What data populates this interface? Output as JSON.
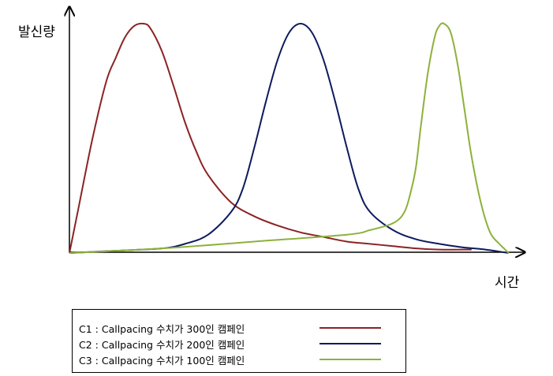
{
  "chart_data": {
    "type": "line",
    "title": "",
    "ylabel": "발신량",
    "xlabel": "시간",
    "grid": false,
    "legend_placement": "bottom",
    "series": [
      {
        "name": "C1 : Callpacing 수치가 300인 캠페인",
        "color": "#8b2324",
        "points": [
          [
            0,
            0
          ],
          [
            2,
            20
          ],
          [
            5,
            50
          ],
          [
            8,
            75
          ],
          [
            10,
            85
          ],
          [
            12,
            94
          ],
          [
            14,
            99
          ],
          [
            16,
            100
          ],
          [
            17.5,
            98
          ],
          [
            20,
            88
          ],
          [
            22.5,
            73
          ],
          [
            25,
            57
          ],
          [
            27.5,
            44
          ],
          [
            30,
            34
          ],
          [
            35,
            22
          ],
          [
            40,
            16
          ],
          [
            45,
            12
          ],
          [
            50,
            9
          ],
          [
            55,
            7
          ],
          [
            60,
            5
          ],
          [
            65,
            4
          ],
          [
            70,
            3
          ],
          [
            75,
            2
          ],
          [
            80,
            1.5
          ],
          [
            87,
            1.5
          ]
        ]
      },
      {
        "name": "C2 : Callpacing 수치가 200인 캠페인",
        "color": "#0d1a5e",
        "points": [
          [
            0,
            0
          ],
          [
            10,
            1
          ],
          [
            20,
            2
          ],
          [
            25,
            4
          ],
          [
            30,
            8
          ],
          [
            35,
            18
          ],
          [
            37.5,
            28
          ],
          [
            40,
            46
          ],
          [
            42.5,
            66
          ],
          [
            45,
            84
          ],
          [
            47.5,
            96
          ],
          [
            50,
            100
          ],
          [
            52.5,
            96
          ],
          [
            55,
            84
          ],
          [
            57.5,
            66
          ],
          [
            60,
            46
          ],
          [
            62.5,
            28
          ],
          [
            65,
            18
          ],
          [
            70,
            10
          ],
          [
            75,
            6
          ],
          [
            80,
            4
          ],
          [
            85,
            2.5
          ],
          [
            90,
            1.5
          ],
          [
            95,
            0
          ]
        ]
      },
      {
        "name": "C3 : Callpacing 수치가 100인 캠페인",
        "color": "#8db13c",
        "points": [
          [
            0,
            0
          ],
          [
            20,
            2
          ],
          [
            40,
            5
          ],
          [
            60,
            8
          ],
          [
            65,
            10
          ],
          [
            70,
            13
          ],
          [
            72.5,
            18
          ],
          [
            74,
            28
          ],
          [
            75,
            38
          ],
          [
            76,
            55
          ],
          [
            77.5,
            78
          ],
          [
            79,
            94
          ],
          [
            80,
            99
          ],
          [
            81,
            100
          ],
          [
            82.5,
            96
          ],
          [
            84,
            82
          ],
          [
            85.5,
            62
          ],
          [
            87,
            42
          ],
          [
            89,
            22
          ],
          [
            91,
            9
          ],
          [
            93,
            4
          ],
          [
            94,
            2
          ],
          [
            95,
            0
          ]
        ]
      }
    ]
  }
}
